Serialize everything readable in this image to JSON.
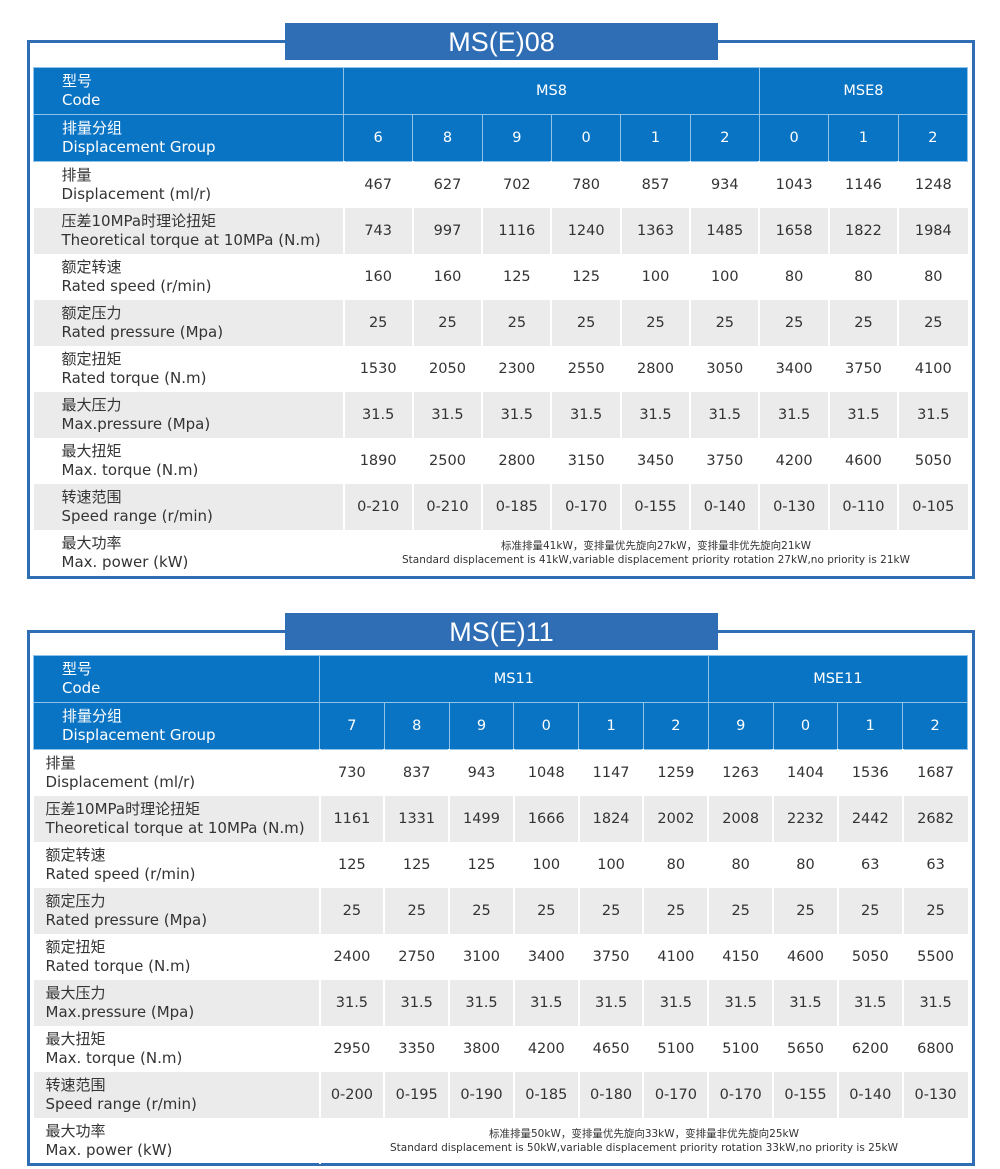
{
  "tables": [
    {
      "title": "MS(E)08",
      "code_label_cn": "型号",
      "code_label_en": "Code",
      "models": [
        {
          "name": "MS8",
          "span": 6
        },
        {
          "name": "MSE8",
          "span": 3
        }
      ],
      "group_label_cn": "排量分组",
      "group_label_en": "Displacement Group",
      "groups": [
        "6",
        "8",
        "9",
        "0",
        "1",
        "2",
        "0",
        "1",
        "2"
      ],
      "rows": [
        {
          "cn": "排量",
          "en": "Displacement (ml/r)",
          "values": [
            "467",
            "627",
            "702",
            "780",
            "857",
            "934",
            "1043",
            "1146",
            "1248"
          ]
        },
        {
          "cn": "压差10MPa时理论扭矩",
          "en": "Theoretical torque at 10MPa (N.m)",
          "values": [
            "743",
            "997",
            "1116",
            "1240",
            "1363",
            "1485",
            "1658",
            "1822",
            "1984"
          ]
        },
        {
          "cn": "额定转速",
          "en": "Rated speed (r/min)",
          "values": [
            "160",
            "160",
            "125",
            "125",
            "100",
            "100",
            "80",
            "80",
            "80"
          ]
        },
        {
          "cn": "额定压力",
          "en": "Rated pressure (Mpa)",
          "values": [
            "25",
            "25",
            "25",
            "25",
            "25",
            "25",
            "25",
            "25",
            "25"
          ]
        },
        {
          "cn": "额定扭矩",
          "en": "Rated torque (N.m)",
          "values": [
            "1530",
            "2050",
            "2300",
            "2550",
            "2800",
            "3050",
            "3400",
            "3750",
            "4100"
          ]
        },
        {
          "cn": "最大压力",
          "en": "Max.pressure (Mpa)",
          "values": [
            "31.5",
            "31.5",
            "31.5",
            "31.5",
            "31.5",
            "31.5",
            "31.5",
            "31.5",
            "31.5"
          ]
        },
        {
          "cn": "最大扭矩",
          "en": "Max. torque (N.m)",
          "values": [
            "1890",
            "2500",
            "2800",
            "3150",
            "3450",
            "3750",
            "4200",
            "4600",
            "5050"
          ]
        },
        {
          "cn": "转速范围",
          "en": "Speed range (r/min)",
          "values": [
            "0-210",
            "0-210",
            "0-185",
            "0-170",
            "0-155",
            "0-140",
            "0-130",
            "0-110",
            "0-105"
          ]
        }
      ],
      "power": {
        "cn": "最大功率",
        "en": "Max. power (kW)",
        "note_cn": "标准排量41kW，变排量优先旋向27kW，变排量非优先旋向21kW",
        "note_en": "Standard displacement is 41kW,variable displacement priority rotation 27kW,no priority is 21kW"
      }
    },
    {
      "title": "MS(E)11",
      "code_label_cn": "型号",
      "code_label_en": "Code",
      "models": [
        {
          "name": "MS11",
          "span": 6
        },
        {
          "name": "MSE11",
          "span": 4
        }
      ],
      "group_label_cn": "排量分组",
      "group_label_en": "Displacement Group",
      "groups": [
        "7",
        "8",
        "9",
        "0",
        "1",
        "2",
        "9",
        "0",
        "1",
        "2"
      ],
      "rows": [
        {
          "cn": "排量",
          "en": "Displacement (ml/r)",
          "values": [
            "730",
            "837",
            "943",
            "1048",
            "1147",
            "1259",
            "1263",
            "1404",
            "1536",
            "1687"
          ]
        },
        {
          "cn": "压差10MPa时理论扭矩",
          "en": "Theoretical torque at 10MPa (N.m)",
          "values": [
            "1161",
            "1331",
            "1499",
            "1666",
            "1824",
            "2002",
            "2008",
            "2232",
            "2442",
            "2682"
          ]
        },
        {
          "cn": "额定转速",
          "en": "Rated speed (r/min)",
          "values": [
            "125",
            "125",
            "125",
            "100",
            "100",
            "80",
            "80",
            "80",
            "63",
            "63"
          ]
        },
        {
          "cn": "额定压力",
          "en": "Rated pressure (Mpa)",
          "values": [
            "25",
            "25",
            "25",
            "25",
            "25",
            "25",
            "25",
            "25",
            "25",
            "25"
          ]
        },
        {
          "cn": "额定扭矩",
          "en": "Rated torque (N.m)",
          "values": [
            "2400",
            "2750",
            "3100",
            "3400",
            "3750",
            "4100",
            "4150",
            "4600",
            "5050",
            "5500"
          ]
        },
        {
          "cn": "最大压力",
          "en": "Max.pressure (Mpa)",
          "values": [
            "31.5",
            "31.5",
            "31.5",
            "31.5",
            "31.5",
            "31.5",
            "31.5",
            "31.5",
            "31.5",
            "31.5"
          ]
        },
        {
          "cn": "最大扭矩",
          "en": "Max. torque (N.m)",
          "values": [
            "2950",
            "3350",
            "3800",
            "4200",
            "4650",
            "5100",
            "5100",
            "5650",
            "6200",
            "6800"
          ]
        },
        {
          "cn": "转速范围",
          "en": "Speed range (r/min)",
          "values": [
            "0-200",
            "0-195",
            "0-190",
            "0-185",
            "0-180",
            "0-170",
            "0-170",
            "0-155",
            "0-140",
            "0-130"
          ]
        }
      ],
      "power": {
        "cn": "最大功率",
        "en": "Max. power (kW)",
        "note_cn": "标准排量50kW，变排量优先旋向33kW，变排量非优先旋向25kW",
        "note_en": "Standard displacement is 50kW,variable displacement priority rotation 33kW,no priority is 25kW"
      }
    }
  ],
  "colors": {
    "frame": "#2f6db5",
    "header": "#0a74c4",
    "alt_row": "#ebebeb"
  }
}
